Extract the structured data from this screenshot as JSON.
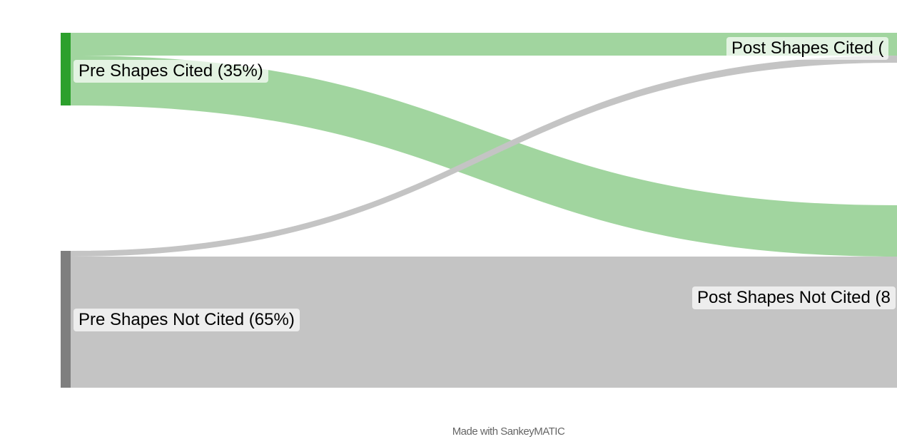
{
  "diagram": {
    "type": "sankey",
    "nodes": [
      {
        "id": "pre_cited",
        "label": "Pre Shapes Cited (35%)",
        "color": "#2ca02c"
      },
      {
        "id": "pre_not",
        "label": "Pre Shapes Not Cited (65%)",
        "color": "#7f7f7f"
      },
      {
        "id": "post_cited",
        "label": "Post Shapes Cited (",
        "color": "#2ca02c"
      },
      {
        "id": "post_not",
        "label": "Post Shapes Not Cited (8",
        "color": "#7f7f7f"
      }
    ],
    "flows": [
      {
        "from": "pre_cited",
        "to": "post_cited",
        "color": "#a1d59f"
      },
      {
        "from": "pre_cited",
        "to": "post_not",
        "color": "#a1d59f"
      },
      {
        "from": "pre_not",
        "to": "post_cited",
        "color": "#c4c4c4"
      },
      {
        "from": "pre_not",
        "to": "post_not",
        "color": "#c4c4c4"
      }
    ]
  },
  "footer": {
    "credit": "Made with SankeyMATIC"
  }
}
